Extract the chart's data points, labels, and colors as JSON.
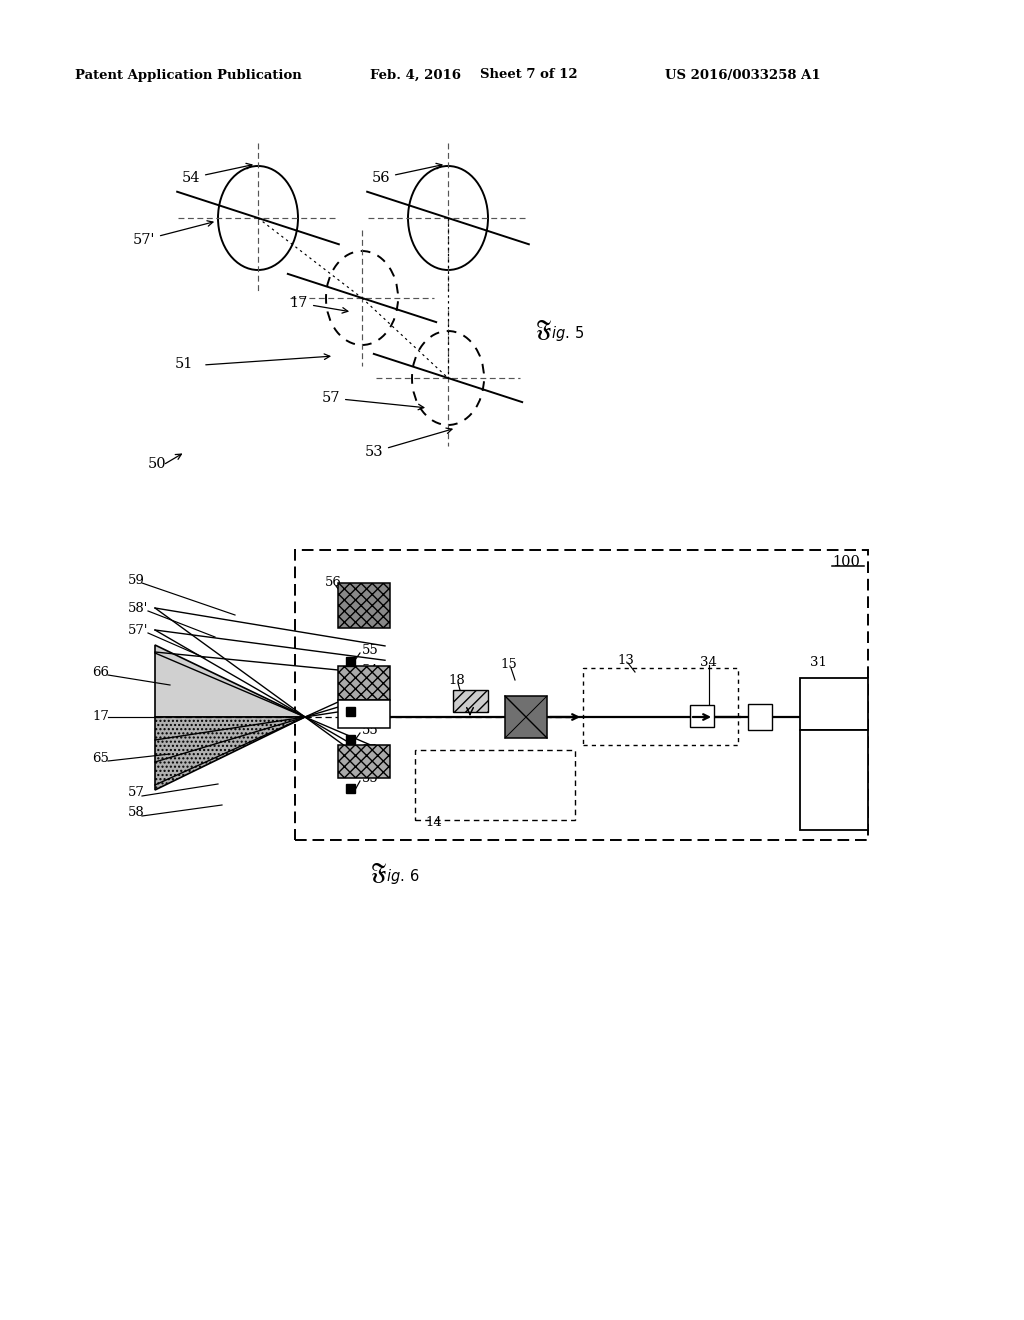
{
  "bg_color": "#ffffff",
  "header_left": "Patent Application Publication",
  "header_mid1": "Feb. 4, 2016",
  "header_mid2": "Sheet 7 of 12",
  "header_right": "US 2016/0033258 A1"
}
